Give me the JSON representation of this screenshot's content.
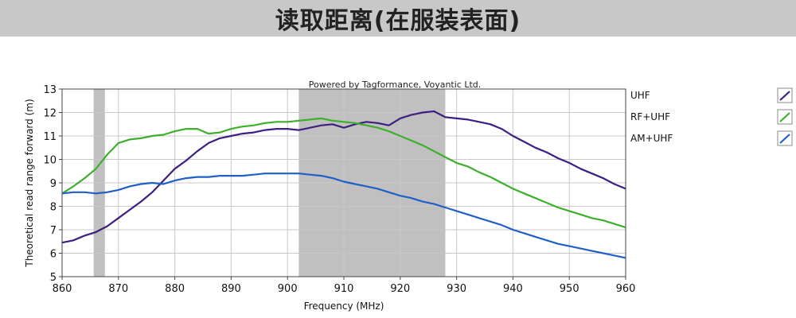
{
  "header": {
    "title": "读取距离(在服装表面)"
  },
  "colors": {
    "UHF": "#3d1e82",
    "RF+UHF": "#3cb02a",
    "AM+UHF": "#1f5fc8",
    "band": "#c0c0c0",
    "grid": "#c8c8c8"
  },
  "chart_data": {
    "type": "line",
    "credit": "Powered by Tagformance, Voyantic Ltd.",
    "xlabel": "Frequency (MHz)",
    "ylabel": "Theoretical read range forward (m)",
    "xlim": [
      860,
      960
    ],
    "ylim": [
      5,
      13
    ],
    "xticks": [
      860,
      870,
      880,
      890,
      900,
      910,
      920,
      930,
      940,
      950,
      960
    ],
    "yticks": [
      5,
      6,
      7,
      8,
      9,
      10,
      11,
      12,
      13
    ],
    "grid": true,
    "legend_position": "right",
    "shaded_bands": [
      [
        865.6,
        867.6
      ],
      [
        902,
        928
      ]
    ],
    "x": [
      860,
      862,
      864,
      866,
      868,
      870,
      872,
      874,
      876,
      878,
      880,
      882,
      884,
      886,
      888,
      890,
      892,
      894,
      896,
      898,
      900,
      902,
      904,
      906,
      908,
      910,
      912,
      914,
      916,
      918,
      920,
      922,
      924,
      926,
      928,
      930,
      932,
      934,
      936,
      938,
      940,
      942,
      944,
      946,
      948,
      950,
      952,
      954,
      956,
      958,
      960
    ],
    "series": [
      {
        "name": "UHF",
        "values": [
          6.45,
          6.55,
          6.75,
          6.9,
          7.15,
          7.5,
          7.85,
          8.2,
          8.6,
          9.1,
          9.6,
          9.95,
          10.35,
          10.7,
          10.9,
          11.0,
          11.1,
          11.15,
          11.25,
          11.3,
          11.3,
          11.25,
          11.35,
          11.45,
          11.5,
          11.35,
          11.5,
          11.6,
          11.55,
          11.45,
          11.75,
          11.9,
          12.0,
          12.05,
          11.8,
          11.75,
          11.7,
          11.6,
          11.5,
          11.3,
          11.0,
          10.75,
          10.5,
          10.3,
          10.05,
          9.85,
          9.6,
          9.4,
          9.2,
          8.95,
          8.75
        ]
      },
      {
        "name": "RF+UHF",
        "values": [
          8.55,
          8.85,
          9.2,
          9.6,
          10.2,
          10.7,
          10.85,
          10.9,
          11.0,
          11.05,
          11.2,
          11.3,
          11.3,
          11.1,
          11.15,
          11.3,
          11.4,
          11.45,
          11.55,
          11.6,
          11.6,
          11.65,
          11.7,
          11.75,
          11.65,
          11.6,
          11.55,
          11.45,
          11.35,
          11.2,
          11.0,
          10.8,
          10.6,
          10.35,
          10.1,
          9.85,
          9.7,
          9.45,
          9.25,
          9.0,
          8.75,
          8.55,
          8.35,
          8.15,
          7.95,
          7.8,
          7.65,
          7.5,
          7.4,
          7.25,
          7.1
        ]
      },
      {
        "name": "AM+UHF",
        "values": [
          8.55,
          8.6,
          8.6,
          8.55,
          8.6,
          8.7,
          8.85,
          8.95,
          9.0,
          8.95,
          9.1,
          9.2,
          9.25,
          9.25,
          9.3,
          9.3,
          9.3,
          9.35,
          9.4,
          9.4,
          9.4,
          9.4,
          9.35,
          9.3,
          9.2,
          9.05,
          8.95,
          8.85,
          8.75,
          8.6,
          8.45,
          8.35,
          8.2,
          8.1,
          7.95,
          7.8,
          7.65,
          7.5,
          7.35,
          7.2,
          7.0,
          6.85,
          6.7,
          6.55,
          6.4,
          6.3,
          6.2,
          6.1,
          6.0,
          5.9,
          5.8
        ]
      }
    ]
  }
}
